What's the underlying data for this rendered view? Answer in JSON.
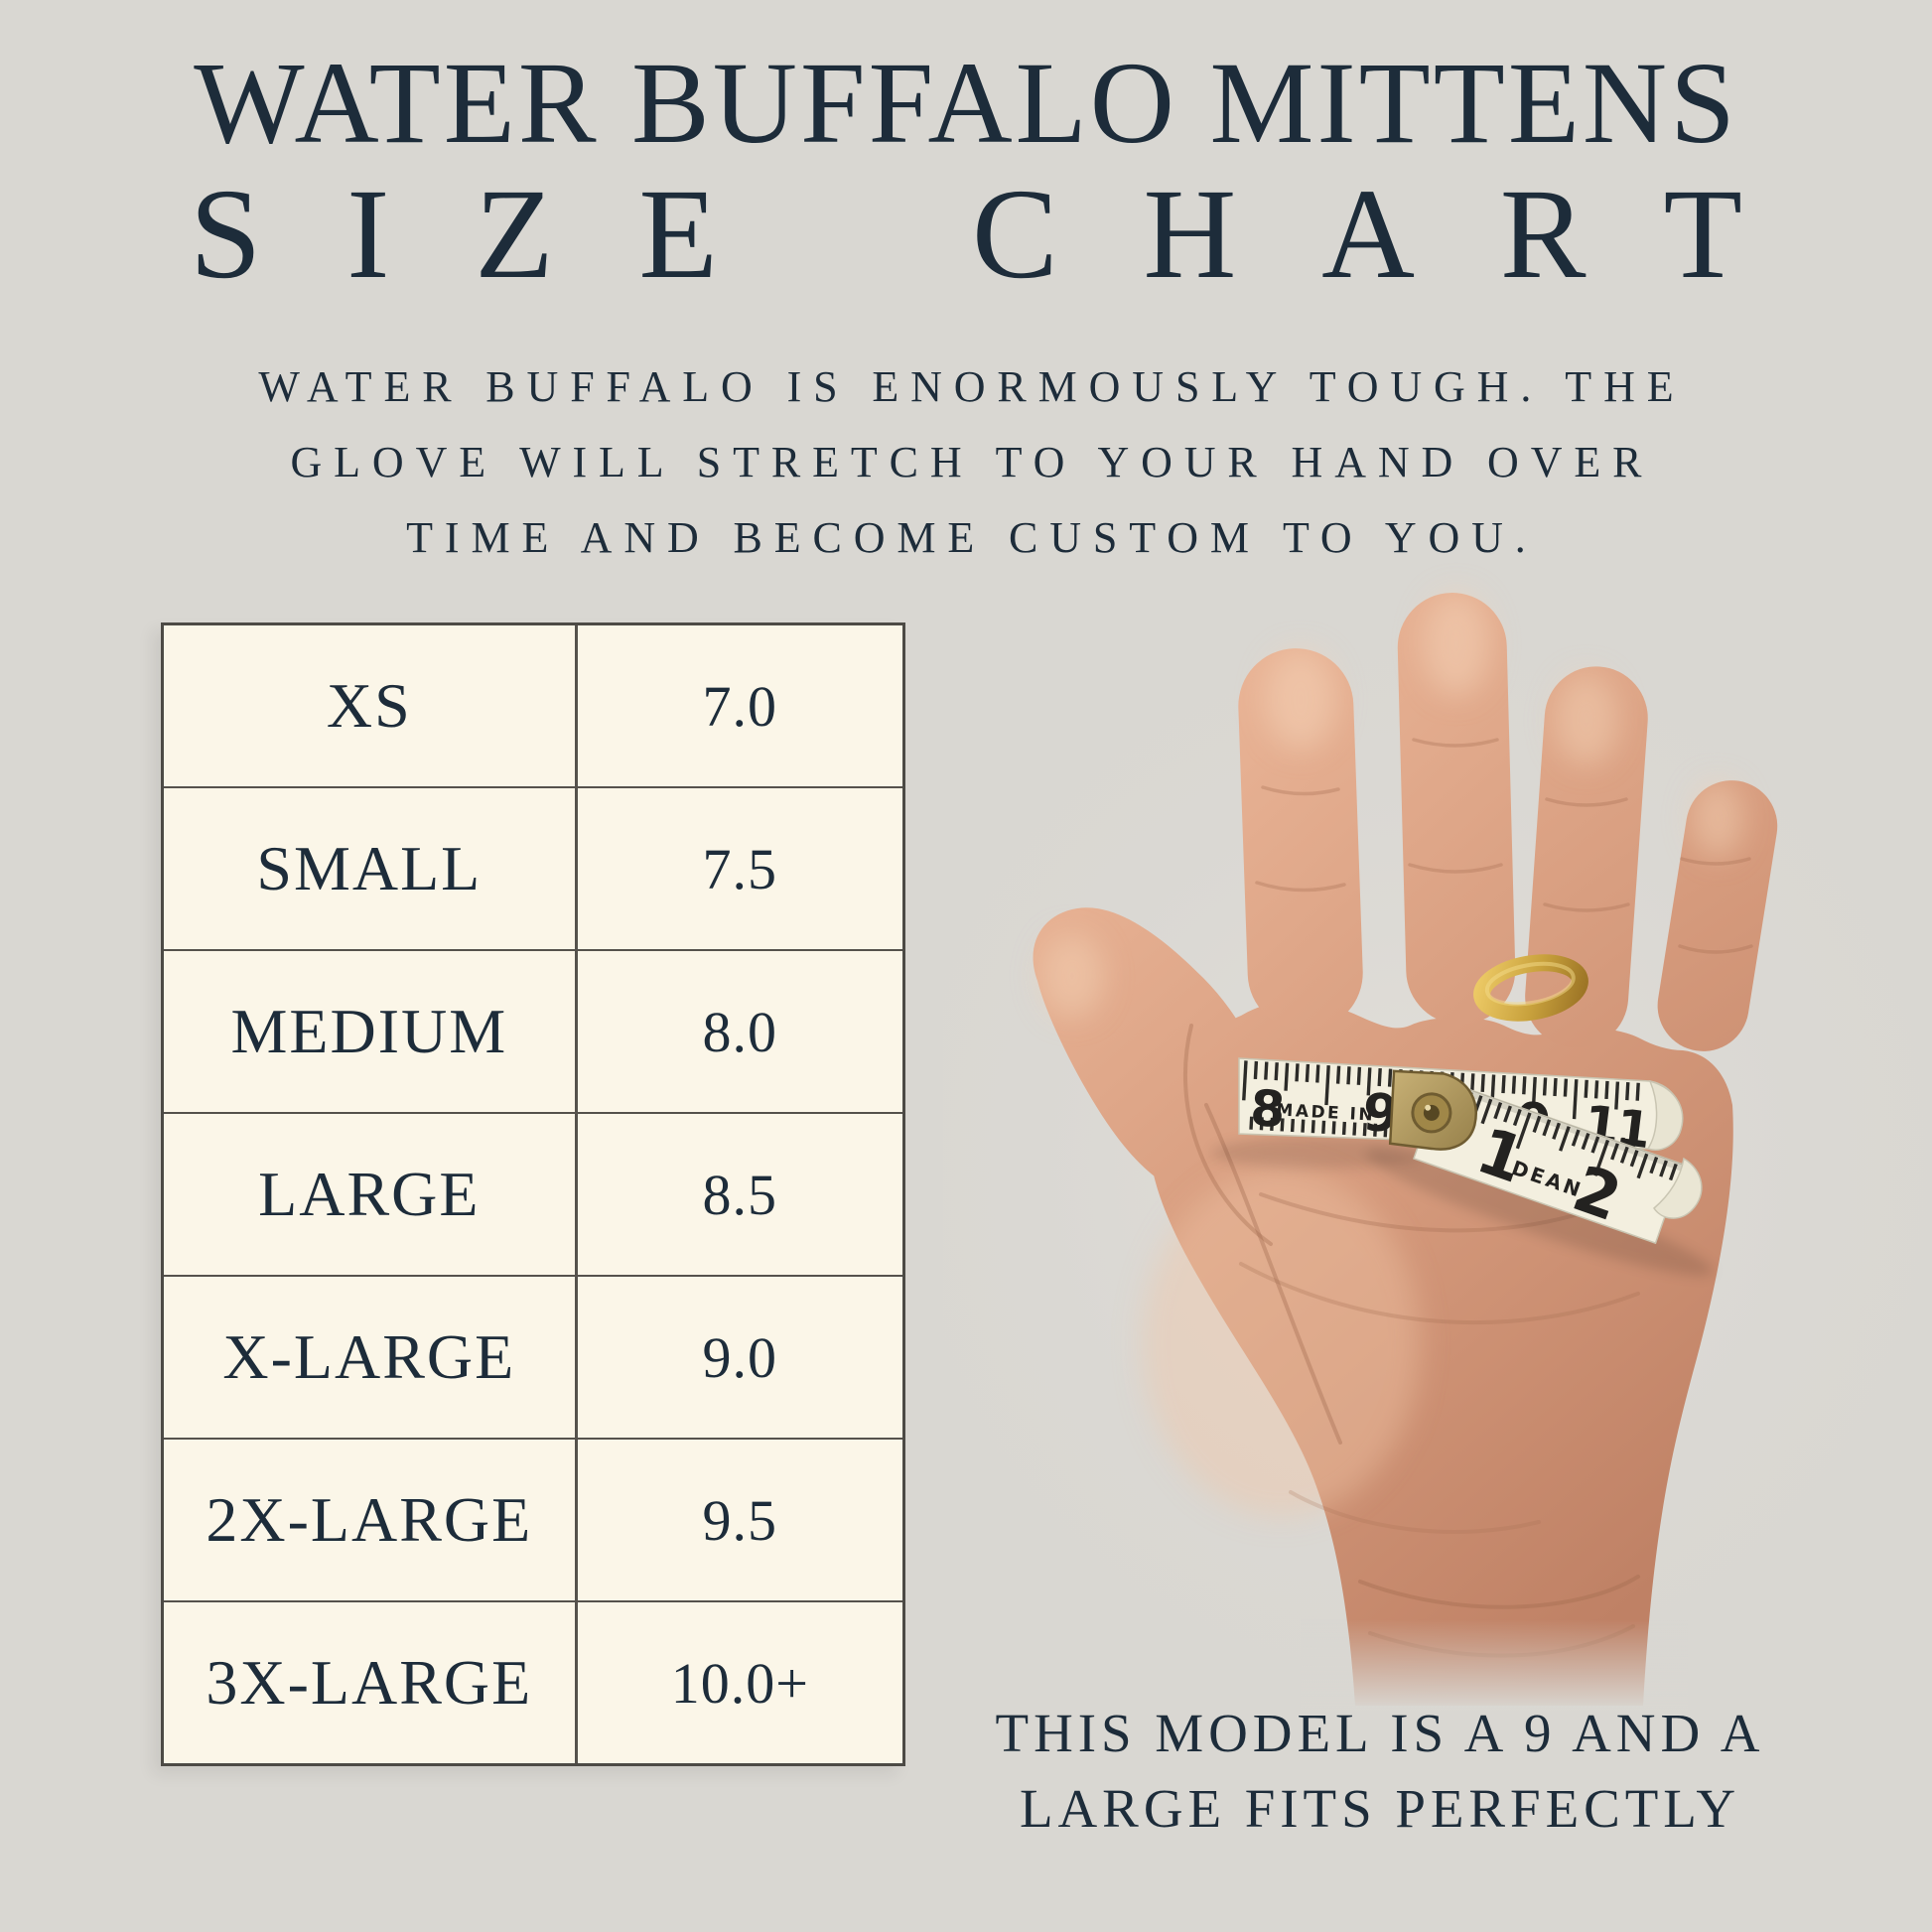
{
  "header": {
    "title_line1": "WATER BUFFALO MITTENS",
    "title_line2": "SIZE CHART",
    "subtitle_lines": [
      "WATER BUFFALO IS ENORMOUSLY TOUGH. THE",
      "GLOVE WILL STRETCH TO YOUR HAND OVER",
      "TIME AND BECOME CUSTOM TO YOU."
    ]
  },
  "chart_data": {
    "type": "table",
    "title": "WATER BUFFALO MITTENS SIZE CHART",
    "columns": [
      "size",
      "hand_size_inches"
    ],
    "rows": [
      {
        "size": "XS",
        "hand_size": "7.0"
      },
      {
        "size": "SMALL",
        "hand_size": "7.5"
      },
      {
        "size": "MEDIUM",
        "hand_size": "8.0"
      },
      {
        "size": "LARGE",
        "hand_size": "8.5"
      },
      {
        "size": "X-LARGE",
        "hand_size": "9.0"
      },
      {
        "size": "2X-LARGE",
        "hand_size": "9.5"
      },
      {
        "size": "3X-LARGE",
        "hand_size": "10.0+"
      }
    ]
  },
  "photo": {
    "tape": {
      "upper_labels": [
        "8",
        "MADE IN",
        "9",
        "0",
        "11"
      ],
      "lower_labels": [
        "1",
        "DEAN",
        "2"
      ]
    }
  },
  "caption": {
    "line1": "THIS MODEL IS A 9 AND A",
    "line2": "LARGE FITS PERFECTLY"
  },
  "colors": {
    "background": "#d9d7d2",
    "ink": "#1d2c3a",
    "table_cell": "#fbf6e8",
    "table_border": "#4c4a45",
    "tape": "#f3efdf",
    "tape_ink": "#232220",
    "brass": "#b49b5c",
    "gold_ring": "#c9a23d",
    "skin_light": "#e9b496",
    "skin_dark": "#bf8165"
  }
}
